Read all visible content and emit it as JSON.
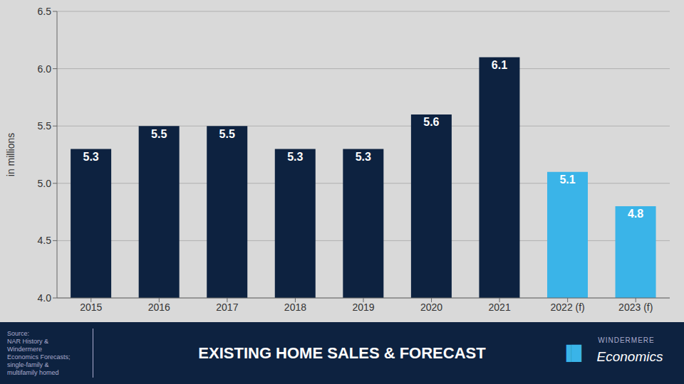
{
  "chart_data": {
    "type": "bar",
    "title": "EXISTING HOME SALES & FORECAST",
    "categories": [
      "2015",
      "2016",
      "2017",
      "2018",
      "2019",
      "2020",
      "2021",
      "2022 (f)",
      "2023 (f)"
    ],
    "values": [
      5.3,
      5.5,
      5.5,
      5.3,
      5.3,
      5.6,
      6.1,
      5.1,
      4.8
    ],
    "colors": [
      "#0d2240",
      "#0d2240",
      "#0d2240",
      "#0d2240",
      "#0d2240",
      "#0d2240",
      "#0d2240",
      "#3ab4e8",
      "#3ab4e8"
    ],
    "ylabel": "in millions",
    "ylim": [
      4.0,
      6.5
    ],
    "yticks": [
      {
        "value": 4.0,
        "label": "4.0"
      },
      4.5,
      {
        "value": 5.0,
        "label": "5.0"
      },
      5.5,
      {
        "value": 6.0,
        "label": "6.0"
      },
      6.5
    ],
    "grid": true,
    "data_labels": true,
    "annotations": [
      "Source:\nNAR History &\nWindermere\nEconomics Forecasts;\nsingle-family &\nmultifamily homed",
      "WINDERMERE",
      "Economics",
      "▐█"
    ]
  }
}
